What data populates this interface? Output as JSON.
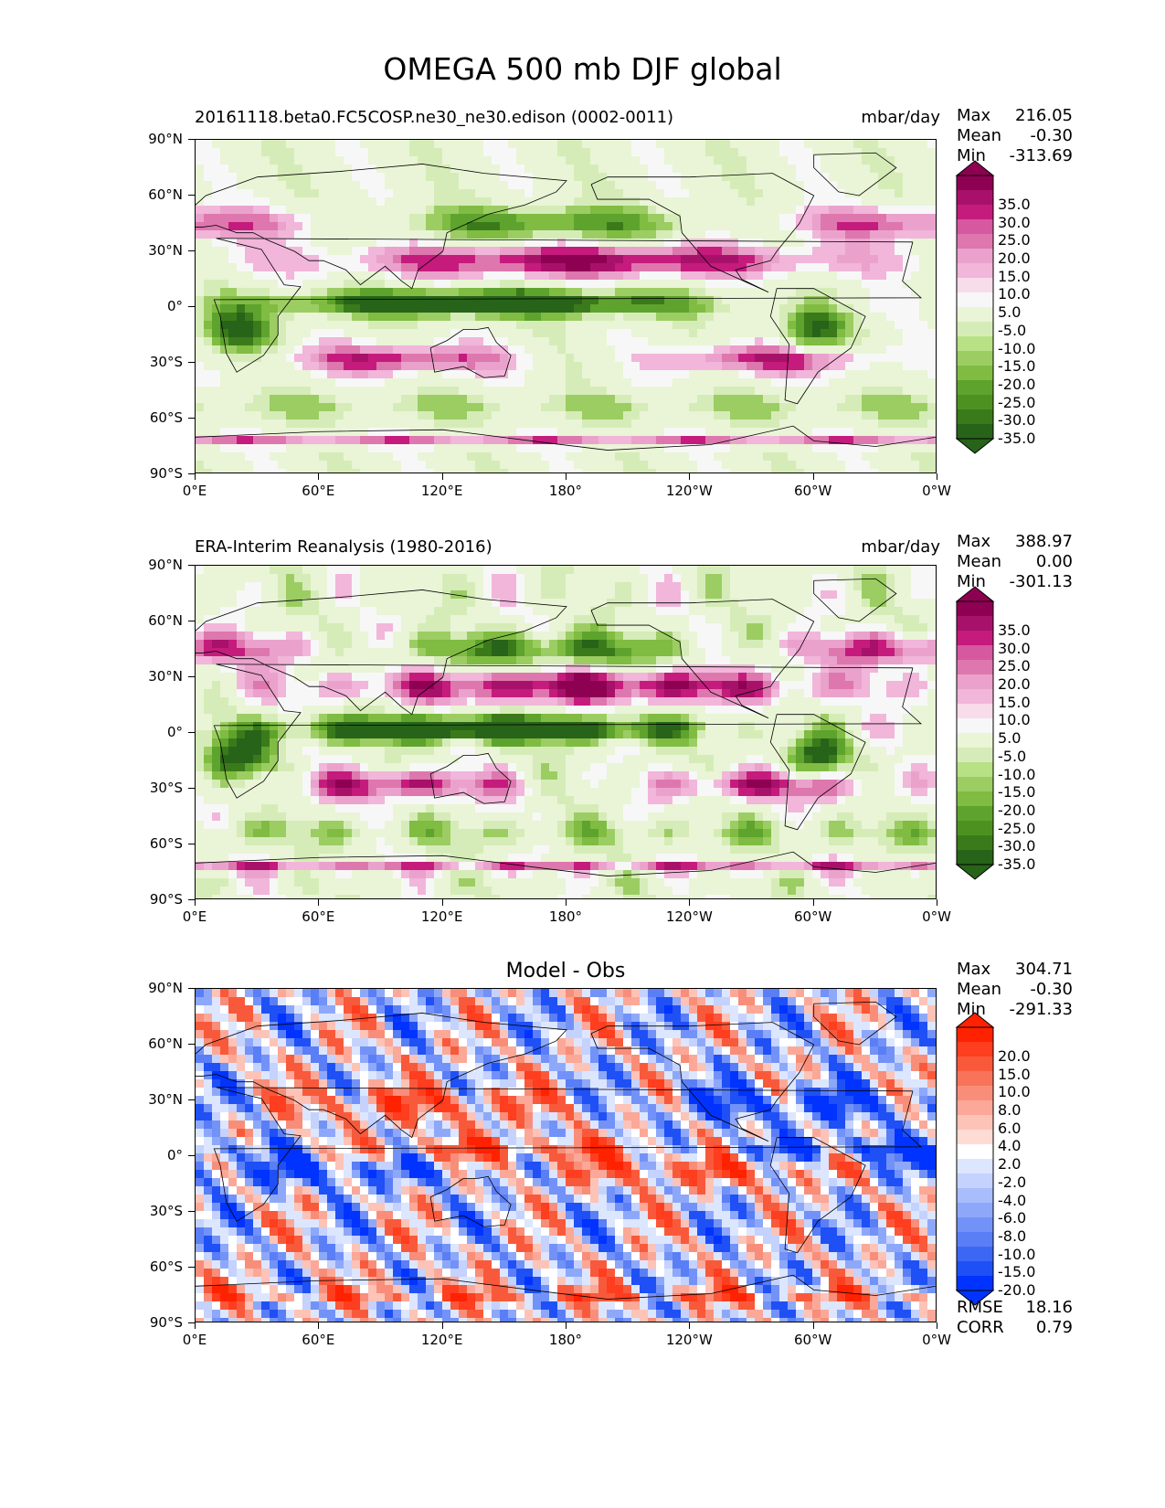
{
  "figure_title": "OMEGA 500 mb DJF global",
  "panels": [
    {
      "title": "20161118.beta0.FC5COSP.ne30_ne30.edison (0002-0011)",
      "units": "mbar/day",
      "stats": [
        [
          "Max",
          "216.05"
        ],
        [
          "Mean",
          "-0.30"
        ],
        [
          "Min",
          "-313.69"
        ]
      ],
      "colorbar": "div1"
    },
    {
      "title": "ERA-Interim Reanalysis (1980-2016)",
      "units": "mbar/day",
      "stats": [
        [
          "Max",
          "388.97"
        ],
        [
          "Mean",
          "0.00"
        ],
        [
          "Min",
          "-301.13"
        ]
      ],
      "colorbar": "div1"
    },
    {
      "title": "Model - Obs",
      "units": "",
      "stats": [
        [
          "Max",
          "304.71"
        ],
        [
          "Mean",
          "-0.30"
        ],
        [
          "Min",
          "-291.33"
        ]
      ],
      "colorbar": "div2"
    }
  ],
  "footer_stats": [
    [
      "RMSE",
      "18.16"
    ],
    [
      "CORR",
      "0.79"
    ]
  ],
  "axes": {
    "x_ticks": [
      "0°E",
      "60°E",
      "120°E",
      "180°",
      "120°W",
      "60°W",
      "0°W"
    ],
    "y_ticks": [
      "90°N",
      "60°N",
      "30°N",
      "0°",
      "30°S",
      "60°S",
      "90°S"
    ]
  },
  "colorbars": {
    "div1": {
      "labels": [
        "35.0",
        "30.0",
        "25.0",
        "20.0",
        "15.0",
        "10.0",
        "5.0",
        "-5.0",
        "-10.0",
        "-15.0",
        "-20.0",
        "-25.0",
        "-30.0",
        "-35.0"
      ],
      "colors": [
        "#8e0152",
        "#a8116a",
        "#c51b7d",
        "#d6589f",
        "#de77ae",
        "#eaa2cc",
        "#f1b6da",
        "#f8dcea",
        "#f7f7f7",
        "#e9f5d6",
        "#d6ecb8",
        "#b8e186",
        "#9ccd63",
        "#7fbc41",
        "#5ea32d",
        "#4d9221",
        "#3b7a1a",
        "#276419"
      ]
    },
    "div2": {
      "labels": [
        "20.0",
        "15.0",
        "10.0",
        "8.0",
        "6.0",
        "4.0",
        "2.0",
        "-2.0",
        "-4.0",
        "-6.0",
        "-8.0",
        "-10.0",
        "-15.0",
        "-20.0"
      ],
      "colors": [
        "#ff2200",
        "#ff3d1f",
        "#f9593b",
        "#f7735a",
        "#f88e79",
        "#fba898",
        "#fdc3b7",
        "#fedcd4",
        "#ffffff",
        "#dde6ff",
        "#c4d2fd",
        "#a8bdfb",
        "#8ea8f9",
        "#7392f8",
        "#5a7ef6",
        "#3c67f5",
        "#1f50f5",
        "#0033ff"
      ]
    }
  },
  "map_fields": {
    "panel_1": "omega 500 mb model climatology",
    "panel_2": "omega 500 mb reanalysis climatology",
    "panel_3": "model minus observations difference"
  }
}
